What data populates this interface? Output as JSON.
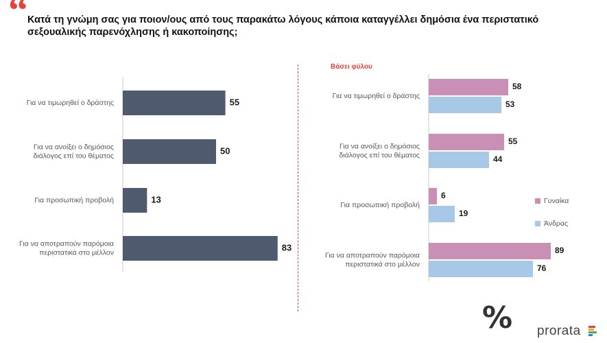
{
  "header": {
    "quote_mark": "“",
    "title": "Κατά τη γνώμη σας για ποιον/ους από τους παρακάτω λόγους κάποια καταγγέλλει δημόσια ένα περιστατικό σεξουαλικής παρενόχλησης ή κακοποίησης;"
  },
  "colors": {
    "total_bar": "#4f5a6e",
    "women_bar": "#c98fb5",
    "men_bar": "#a8c8e8",
    "accent": "#e8413c"
  },
  "chart_data": [
    {
      "type": "bar",
      "orientation": "horizontal",
      "categories": [
        [
          "Για να τιμωρηθεί ο δράστης"
        ],
        [
          "Για να ανοίξει ο δημόσιος",
          "διάλογος επί του θέματος"
        ],
        [
          "Για προσωπική προβολή"
        ],
        [
          "Για να αποτραπούν παρόμοια",
          "περιστατικά στο μέλλον"
        ]
      ],
      "values": [
        55,
        50,
        13,
        83
      ],
      "xlim": [
        0,
        100
      ],
      "grid": false
    },
    {
      "type": "bar",
      "orientation": "horizontal",
      "subtitle": "Βάσει φύλου",
      "categories": [
        [
          "Για να τιμωρηθεί ο δράστης"
        ],
        [
          "Για να ανοίξει ο δημόσιος",
          "διάλογος επί του θέματος"
        ],
        [
          "Για προσωπική προβολή"
        ],
        [
          "Για να αποτραπούν παρόμοια",
          "περιστατικά στο μέλλον"
        ]
      ],
      "series": [
        {
          "name": "Γυναίκα",
          "values": [
            58,
            55,
            6,
            89
          ]
        },
        {
          "name": "Άνδρας",
          "values": [
            53,
            44,
            19,
            76
          ]
        }
      ],
      "xlim": [
        0,
        100
      ],
      "legend": "right",
      "grid": false
    }
  ],
  "logo": {
    "symbol": "%",
    "wordmark": "prorata"
  }
}
